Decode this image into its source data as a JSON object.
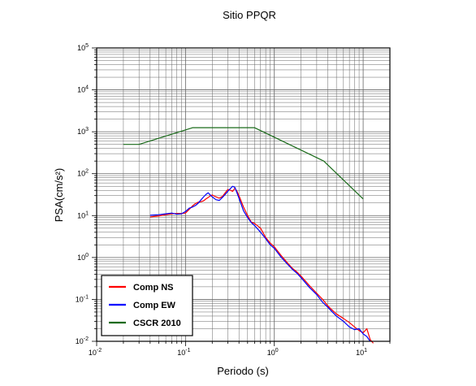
{
  "chart_data": {
    "type": "line",
    "title": "Sitio PPQR",
    "xlabel": "Periodo (s)",
    "ylabel": "PSA(cm/s²)",
    "xscale": "log",
    "yscale": "log",
    "xlim": [
      0.01,
      20
    ],
    "ylim": [
      0.01,
      100000
    ],
    "x_ticks": [
      {
        "base": "10",
        "exp": "-2"
      },
      {
        "base": "10",
        "exp": "-1"
      },
      {
        "base": "10",
        "exp": "0"
      },
      {
        "base": "10",
        "exp": "1"
      }
    ],
    "y_ticks": [
      {
        "base": "10",
        "exp": "-2"
      },
      {
        "base": "10",
        "exp": "-1"
      },
      {
        "base": "10",
        "exp": "0"
      },
      {
        "base": "10",
        "exp": "1"
      },
      {
        "base": "10",
        "exp": "2"
      },
      {
        "base": "10",
        "exp": "3"
      },
      {
        "base": "10",
        "exp": "4"
      },
      {
        "base": "10",
        "exp": "5"
      }
    ],
    "grid": true,
    "legend_position": "bottom-left",
    "series": [
      {
        "name": "Comp NS",
        "color": "#ff0000",
        "x": [
          0.04,
          0.05,
          0.06,
          0.07,
          0.08,
          0.09,
          0.1,
          0.11,
          0.12,
          0.13,
          0.14,
          0.15,
          0.16,
          0.17,
          0.18,
          0.19,
          0.2,
          0.22,
          0.24,
          0.26,
          0.28,
          0.3,
          0.32,
          0.34,
          0.36,
          0.38,
          0.4,
          0.45,
          0.5,
          0.55,
          0.6,
          0.7,
          0.8,
          0.9,
          1.0,
          1.2,
          1.4,
          1.6,
          1.8,
          2.0,
          2.5,
          3.0,
          3.5,
          4.0,
          4.5,
          5.0,
          6.0,
          7.0,
          8.0,
          9.0,
          10.0,
          11.0,
          12.0,
          13.0
        ],
        "y": [
          9.3,
          9.8,
          10.5,
          11.0,
          11.3,
          11.2,
          11.5,
          14.0,
          17.0,
          19.5,
          21.0,
          21.5,
          22.5,
          25.0,
          27.0,
          29.5,
          31.0,
          28.0,
          26.0,
          28.5,
          35.0,
          42.0,
          40.0,
          38.0,
          45.0,
          38.0,
          30.0,
          16.0,
          10.0,
          7.0,
          6.5,
          5.0,
          3.0,
          2.2,
          1.8,
          1.1,
          0.75,
          0.55,
          0.45,
          0.36,
          0.21,
          0.14,
          0.1,
          0.07,
          0.055,
          0.045,
          0.035,
          0.028,
          0.022,
          0.018,
          0.016,
          0.02,
          0.011,
          0.009
        ]
      },
      {
        "name": "Comp EW",
        "color": "#0000ff",
        "x": [
          0.04,
          0.05,
          0.06,
          0.07,
          0.08,
          0.09,
          0.1,
          0.11,
          0.12,
          0.13,
          0.14,
          0.15,
          0.16,
          0.17,
          0.18,
          0.19,
          0.2,
          0.22,
          0.24,
          0.26,
          0.28,
          0.3,
          0.32,
          0.34,
          0.36,
          0.38,
          0.4,
          0.45,
          0.5,
          0.55,
          0.6,
          0.7,
          0.8,
          0.9,
          1.0,
          1.2,
          1.4,
          1.6,
          1.8,
          2.0,
          2.5,
          3.0,
          3.5,
          4.0,
          4.5,
          5.0,
          6.0,
          7.0,
          8.0,
          9.0,
          10.0,
          11.0,
          12.0
        ],
        "y": [
          10.2,
          10.5,
          11.0,
          11.5,
          10.8,
          11.0,
          12.5,
          15.0,
          16.0,
          17.5,
          20.0,
          24.0,
          28.0,
          32.0,
          35.0,
          31.0,
          28.0,
          24.0,
          23.0,
          27.0,
          32.0,
          38.0,
          44.0,
          50.0,
          47.0,
          35.0,
          26.0,
          13.0,
          9.0,
          6.8,
          5.8,
          4.0,
          2.8,
          2.0,
          1.65,
          1.0,
          0.7,
          0.52,
          0.42,
          0.33,
          0.19,
          0.13,
          0.085,
          0.065,
          0.05,
          0.04,
          0.03,
          0.022,
          0.019,
          0.02,
          0.015,
          0.013,
          0.01
        ]
      },
      {
        "name": "CSCR 2010",
        "color": "#1a6b1a",
        "x": [
          0.02,
          0.03,
          0.12,
          0.6,
          3.6,
          10.0
        ],
        "y": [
          500,
          500,
          1250,
          1250,
          200,
          25
        ]
      }
    ]
  }
}
